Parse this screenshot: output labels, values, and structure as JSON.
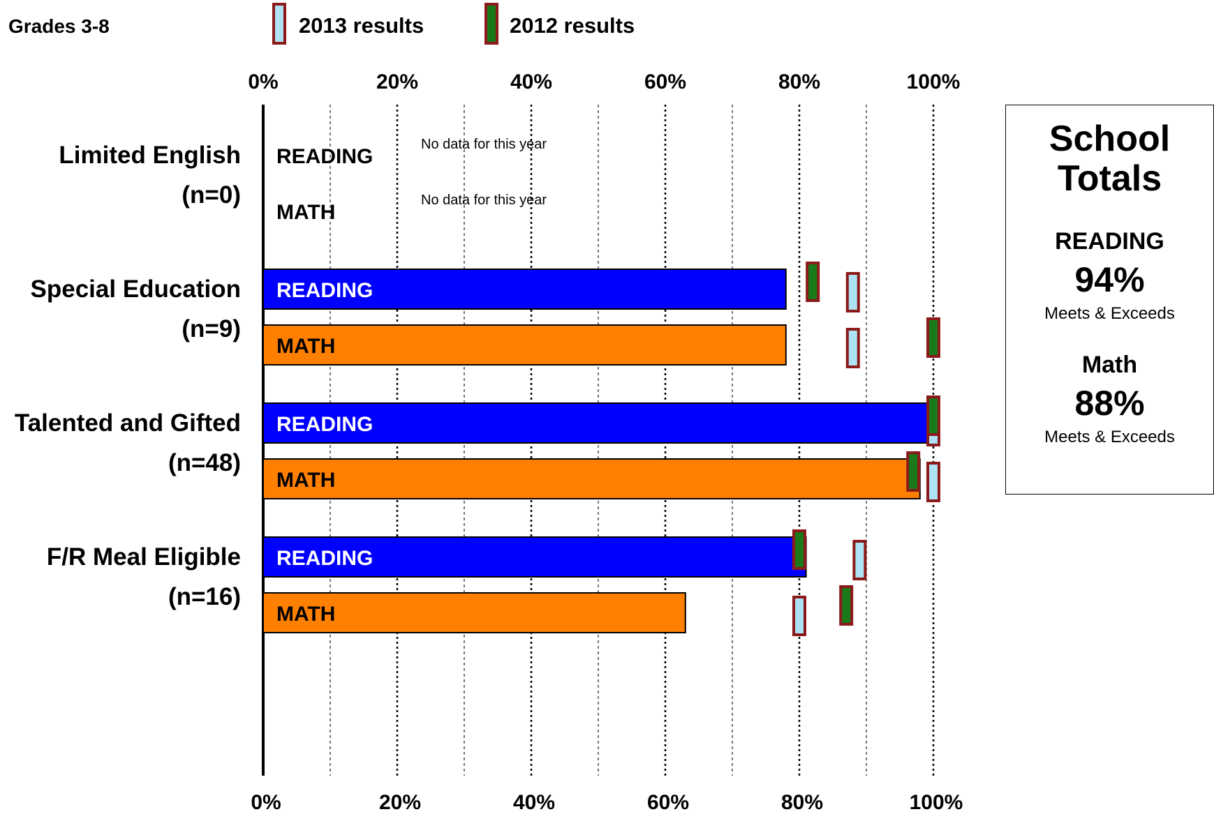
{
  "header": {
    "grade_label": "Grades 3-8"
  },
  "legend": [
    {
      "label": "2013 results",
      "fill": "#aee3f5",
      "stroke": "#8b1a1a"
    },
    {
      "label": "2012 results",
      "fill": "#1a7a1a",
      "stroke": "#8b1a1a"
    }
  ],
  "colors": {
    "reading_bar": "#0000ff",
    "math_bar": "#ff8000",
    "marker_border": "#8b1a1a"
  },
  "chart_data": {
    "type": "bar",
    "orientation": "horizontal",
    "xlim": [
      0,
      100
    ],
    "tick_labels": [
      "0%",
      "20%",
      "40%",
      "60%",
      "80%",
      "100%"
    ],
    "grid": true,
    "legend_position": "top",
    "groups": [
      {
        "name": "Limited English",
        "n_label": "(n=0)",
        "rows": [
          {
            "subject": "READING",
            "value": null,
            "prior_2012": null,
            "marker_2013": null,
            "note": "No data for this year"
          },
          {
            "subject": "MATH",
            "value": null,
            "prior_2012": null,
            "marker_2013": null,
            "note": "No data for this year"
          }
        ]
      },
      {
        "name": "Special Education",
        "n_label": "(n=9)",
        "rows": [
          {
            "subject": "READING",
            "value": 78,
            "prior_2012": 82,
            "marker_2013": 88
          },
          {
            "subject": "MATH",
            "value": 78,
            "prior_2012": 100,
            "marker_2013": 88
          }
        ]
      },
      {
        "name": "Talented and Gifted",
        "n_label": "(n=48)",
        "rows": [
          {
            "subject": "READING",
            "value": 100,
            "prior_2012": 100,
            "marker_2013": 100
          },
          {
            "subject": "MATH",
            "value": 98,
            "prior_2012": 97,
            "marker_2013": 100
          }
        ]
      },
      {
        "name": "F/R Meal Eligible",
        "n_label": "(n=16)",
        "rows": [
          {
            "subject": "READING",
            "value": 81,
            "prior_2012": 80,
            "marker_2013": 89
          },
          {
            "subject": "MATH",
            "value": 63,
            "prior_2012": 87,
            "marker_2013": 80
          }
        ]
      }
    ]
  },
  "school_totals": {
    "title_line1": "School",
    "title_line2": "Totals",
    "reading_label": "READING",
    "reading_value": "94%",
    "reading_note": "Meets & Exceeds",
    "math_label": "Math",
    "math_value": "88%",
    "math_note": "Meets & Exceeds"
  }
}
